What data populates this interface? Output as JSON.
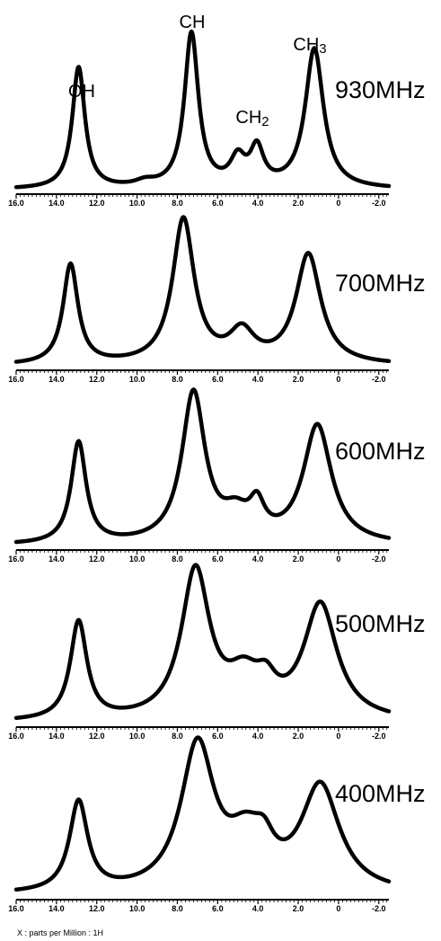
{
  "chart_data": {
    "type": "line",
    "title": "",
    "xlabel": "X : parts per Million : 1H",
    "ylabel": "",
    "x_reversed": true,
    "xlim": [
      16.0,
      -2.5
    ],
    "x_ticks": [
      {
        "value": 16,
        "label": "16.0"
      },
      {
        "value": 14,
        "label": "14.0"
      },
      {
        "value": 12,
        "label": "12.0"
      },
      {
        "value": 10,
        "label": "10.0"
      },
      {
        "value": 8,
        "label": "8.0"
      },
      {
        "value": 6,
        "label": "6.0"
      },
      {
        "value": 4,
        "label": "4.0"
      },
      {
        "value": 2,
        "label": "2.0"
      },
      {
        "value": 0,
        "label": "0"
      },
      {
        "value": -2,
        "label": "-2.0"
      }
    ],
    "grid": false,
    "peak_labels": [
      {
        "text": "OH",
        "ppm": 13.0
      },
      {
        "text": "CH",
        "ppm": 7.2
      },
      {
        "text": "CH",
        "sub": "2",
        "ppm": 4.2
      },
      {
        "text": "CH",
        "sub": "3",
        "ppm": 1.1
      }
    ],
    "series": [
      {
        "name": "930MHz",
        "peaks": [
          {
            "ppm": 12.9,
            "height": 0.73,
            "width": 0.38
          },
          {
            "ppm": 9.6,
            "height": 0.03,
            "width": 0.6
          },
          {
            "ppm": 7.3,
            "height": 0.93,
            "width": 0.42
          },
          {
            "ppm": 5.0,
            "height": 0.16,
            "width": 0.45
          },
          {
            "ppm": 4.05,
            "height": 0.22,
            "width": 0.4
          },
          {
            "ppm": 1.2,
            "height": 0.84,
            "width": 0.55
          }
        ]
      },
      {
        "name": "700MHz",
        "peaks": [
          {
            "ppm": 13.3,
            "height": 0.6,
            "width": 0.45
          },
          {
            "ppm": 7.7,
            "height": 0.87,
            "width": 0.65
          },
          {
            "ppm": 4.8,
            "height": 0.18,
            "width": 0.75
          },
          {
            "ppm": 1.5,
            "height": 0.66,
            "width": 0.75
          }
        ]
      },
      {
        "name": "600MHz",
        "peaks": [
          {
            "ppm": 12.9,
            "height": 0.61,
            "width": 0.45
          },
          {
            "ppm": 7.2,
            "height": 0.9,
            "width": 0.7
          },
          {
            "ppm": 5.1,
            "height": 0.14,
            "width": 0.8
          },
          {
            "ppm": 4.05,
            "height": 0.18,
            "width": 0.45
          },
          {
            "ppm": 1.05,
            "height": 0.71,
            "width": 0.85
          }
        ]
      },
      {
        "name": "500MHz",
        "peaks": [
          {
            "ppm": 12.9,
            "height": 0.59,
            "width": 0.5
          },
          {
            "ppm": 7.1,
            "height": 0.89,
            "width": 0.85
          },
          {
            "ppm": 4.7,
            "height": 0.22,
            "width": 1.0
          },
          {
            "ppm": 3.6,
            "height": 0.14,
            "width": 0.6
          },
          {
            "ppm": 0.9,
            "height": 0.69,
            "width": 1.0
          }
        ]
      },
      {
        "name": "400MHz",
        "peaks": [
          {
            "ppm": 12.9,
            "height": 0.54,
            "width": 0.55
          },
          {
            "ppm": 7.0,
            "height": 0.87,
            "width": 1.0
          },
          {
            "ppm": 4.6,
            "height": 0.27,
            "width": 1.1
          },
          {
            "ppm": 3.7,
            "height": 0.15,
            "width": 0.6
          },
          {
            "ppm": 0.9,
            "height": 0.63,
            "width": 1.15
          }
        ]
      }
    ]
  }
}
